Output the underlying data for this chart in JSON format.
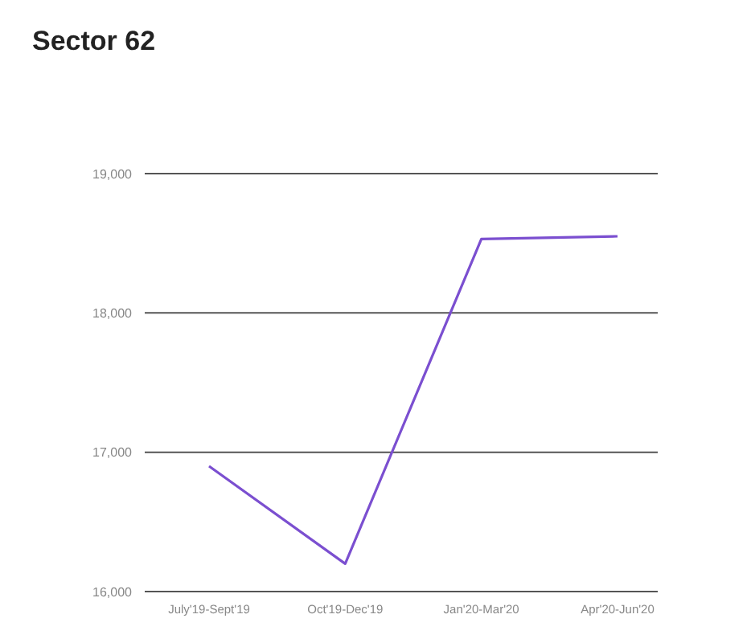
{
  "chart_data": {
    "type": "line",
    "title": "Sector 62",
    "categories": [
      "July'19-Sept'19",
      "Oct'19-Dec'19",
      "Jan'20-Mar'20",
      "Apr'20-Jun'20"
    ],
    "series": [
      {
        "color": "#7b4fd0",
        "values": [
          16900,
          16200,
          18530,
          18550
        ]
      }
    ],
    "ylim": [
      16000,
      19000
    ],
    "yticks": [
      {
        "value": 16000,
        "label": "16,000"
      },
      {
        "value": 17000,
        "label": "17,000"
      },
      {
        "value": 18000,
        "label": "18,000"
      },
      {
        "value": 19000,
        "label": "19,000"
      }
    ],
    "grid": "y",
    "legend": false,
    "marker": "none"
  }
}
